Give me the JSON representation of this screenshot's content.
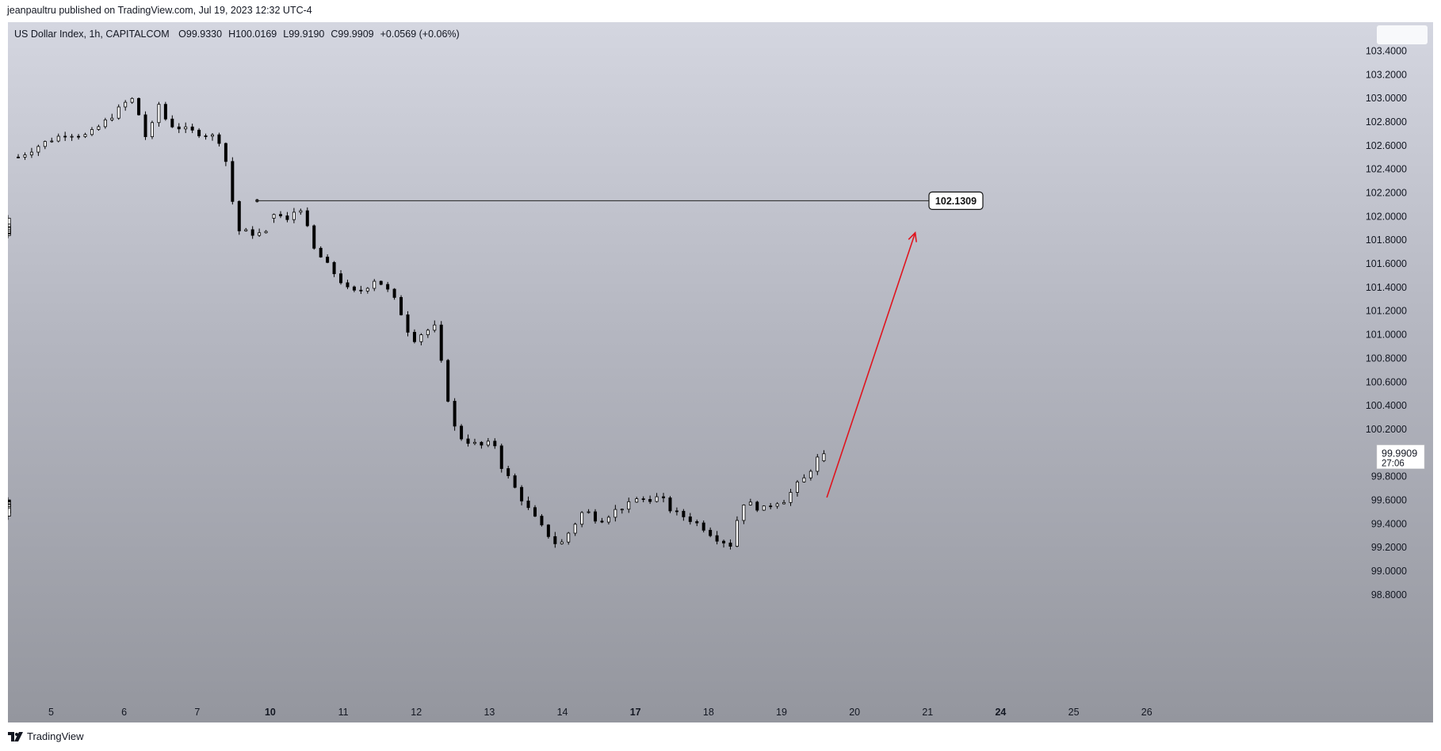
{
  "header": {
    "published": "jeanpaultru published on TradingView.com, Jul 19, 2023 12:32 UTC-4"
  },
  "legend": {
    "symbol": "US Dollar Index, 1h, CAPITALCOM",
    "open": "O99.9330",
    "high": "H100.0169",
    "low": "L99.9190",
    "close": "C99.9909",
    "change": "+0.0569 (+0.06%)"
  },
  "price_label": {
    "price": "99.9909",
    "countdown": "27:06"
  },
  "footer": {
    "brand": "TradingView"
  },
  "colors": {
    "arrow": "#e0141e",
    "candle": "#000000",
    "text": "#131722"
  },
  "chart_data": {
    "type": "candlestick",
    "title": "US Dollar Index, 1h, CAPITALCOM",
    "x_ticks": [
      {
        "label": "5",
        "day": 5,
        "bold": false
      },
      {
        "label": "6",
        "day": 6,
        "bold": false
      },
      {
        "label": "7",
        "day": 7,
        "bold": false
      },
      {
        "label": "10",
        "day": 10,
        "bold": true
      },
      {
        "label": "11",
        "day": 11,
        "bold": false
      },
      {
        "label": "12",
        "day": 12,
        "bold": false
      },
      {
        "label": "13",
        "day": 13,
        "bold": false
      },
      {
        "label": "14",
        "day": 14,
        "bold": false
      },
      {
        "label": "17",
        "day": 17,
        "bold": true
      },
      {
        "label": "18",
        "day": 18,
        "bold": false
      },
      {
        "label": "19",
        "day": 19,
        "bold": false
      },
      {
        "label": "20",
        "day": 20,
        "bold": false
      },
      {
        "label": "21",
        "day": 21,
        "bold": false
      },
      {
        "label": "24",
        "day": 24,
        "bold": true
      },
      {
        "label": "25",
        "day": 25,
        "bold": false
      },
      {
        "label": "26",
        "day": 26,
        "bold": false
      }
    ],
    "y_ticks": [
      "103.4000",
      "103.2000",
      "103.0000",
      "102.8000",
      "102.6000",
      "102.4000",
      "102.2000",
      "102.0000",
      "101.8000",
      "101.6000",
      "101.4000",
      "101.2000",
      "101.0000",
      "100.8000",
      "100.6000",
      "100.4000",
      "100.2000",
      "99.8000",
      "99.6000",
      "99.4000",
      "99.2000",
      "99.0000",
      "98.8000"
    ],
    "ylim": [
      98.62,
      103.52
    ],
    "grid": false,
    "price_path": [
      {
        "d": 4.55,
        "v": 102.5
      },
      {
        "d": 4.9,
        "v": 102.62
      },
      {
        "d": 5.2,
        "v": 102.7
      },
      {
        "d": 5.5,
        "v": 102.68
      },
      {
        "d": 5.8,
        "v": 102.83
      },
      {
        "d": 6.0,
        "v": 102.95
      },
      {
        "d": 6.1,
        "v": 103.0
      },
      {
        "d": 6.2,
        "v": 102.86
      },
      {
        "d": 6.33,
        "v": 102.6
      },
      {
        "d": 6.45,
        "v": 102.98
      },
      {
        "d": 6.6,
        "v": 102.78
      },
      {
        "d": 6.9,
        "v": 102.72
      },
      {
        "d": 7.2,
        "v": 102.68
      },
      {
        "d": 7.35,
        "v": 102.62
      },
      {
        "d": 7.45,
        "v": 102.25
      },
      {
        "d": 7.55,
        "v": 101.88
      },
      {
        "d": 7.8,
        "v": 101.85
      },
      {
        "d": 9.9,
        "v": 101.92
      },
      {
        "d": 10.1,
        "v": 102.05
      },
      {
        "d": 10.2,
        "v": 101.93
      },
      {
        "d": 10.4,
        "v": 102.1
      },
      {
        "d": 10.6,
        "v": 101.72
      },
      {
        "d": 10.9,
        "v": 101.5
      },
      {
        "d": 11.1,
        "v": 101.35
      },
      {
        "d": 11.3,
        "v": 101.38
      },
      {
        "d": 11.4,
        "v": 101.47
      },
      {
        "d": 11.55,
        "v": 101.42
      },
      {
        "d": 11.75,
        "v": 101.25
      },
      {
        "d": 11.85,
        "v": 101.08
      },
      {
        "d": 11.95,
        "v": 100.95
      },
      {
        "d": 12.1,
        "v": 101.02
      },
      {
        "d": 12.25,
        "v": 101.06
      },
      {
        "d": 12.45,
        "v": 100.4
      },
      {
        "d": 12.55,
        "v": 100.15
      },
      {
        "d": 12.75,
        "v": 100.08
      },
      {
        "d": 12.95,
        "v": 100.05
      },
      {
        "d": 13.05,
        "v": 100.12
      },
      {
        "d": 13.15,
        "v": 99.9
      },
      {
        "d": 13.35,
        "v": 99.7
      },
      {
        "d": 13.5,
        "v": 99.55
      },
      {
        "d": 13.7,
        "v": 99.38
      },
      {
        "d": 13.95,
        "v": 99.2
      },
      {
        "d": 14.15,
        "v": 99.38
      },
      {
        "d": 14.3,
        "v": 99.52
      },
      {
        "d": 14.5,
        "v": 99.42
      },
      {
        "d": 14.75,
        "v": 99.52
      },
      {
        "d": 14.9,
        "v": 99.56
      },
      {
        "d": 16.1,
        "v": 99.5
      },
      {
        "d": 16.2,
        "v": 99.45
      },
      {
        "d": 16.3,
        "v": 99.55
      },
      {
        "d": 17.35,
        "v": 99.62
      },
      {
        "d": 17.5,
        "v": 99.5
      },
      {
        "d": 17.7,
        "v": 99.45
      },
      {
        "d": 17.9,
        "v": 99.38
      },
      {
        "d": 18.1,
        "v": 99.28
      },
      {
        "d": 18.3,
        "v": 99.22
      },
      {
        "d": 18.4,
        "v": 99.45
      },
      {
        "d": 18.5,
        "v": 99.6
      },
      {
        "d": 18.6,
        "v": 99.55
      },
      {
        "d": 18.75,
        "v": 99.52
      },
      {
        "d": 18.9,
        "v": 99.58
      },
      {
        "d": 19.05,
        "v": 99.6
      },
      {
        "d": 19.2,
        "v": 99.72
      },
      {
        "d": 19.35,
        "v": 99.8
      },
      {
        "d": 19.45,
        "v": 99.92
      },
      {
        "d": 19.55,
        "v": 99.99
      }
    ],
    "horizontal_line": {
      "value": 102.1309,
      "label": "102.1309",
      "start_day": 7.82
    },
    "arrow": {
      "from_day": 19.62,
      "from_value": 99.62,
      "to_day": 20.83,
      "to_value": 101.86
    }
  }
}
